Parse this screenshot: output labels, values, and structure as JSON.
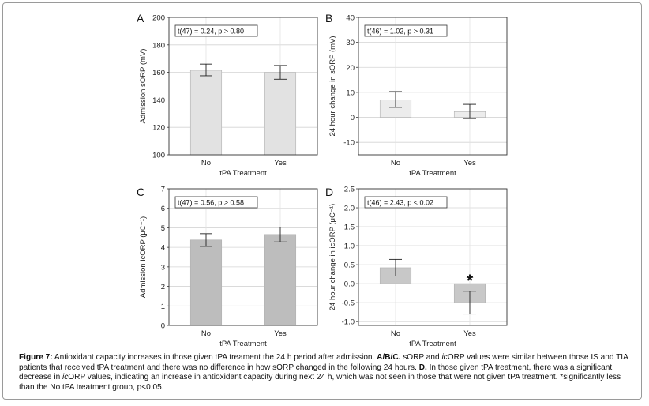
{
  "chart_data": [
    {
      "panel": "A",
      "type": "bar",
      "categories": [
        "No",
        "Yes"
      ],
      "values": [
        161.5,
        160
      ],
      "error_bars": [
        [
          157.5,
          166
        ],
        [
          155,
          165
        ]
      ],
      "xlabel": "tPA Treatment",
      "ylabel": "Admission sORP (mV)",
      "ylim": [
        100,
        200
      ],
      "yticks": [
        100,
        120,
        140,
        160,
        180,
        200
      ],
      "stat_label": "t(47) = 0.24, p > 0.80",
      "bar_color": "#e2e2e2",
      "grid": true
    },
    {
      "panel": "B",
      "type": "bar",
      "categories": [
        "No",
        "Yes"
      ],
      "values": [
        7,
        2.3
      ],
      "error_bars": [
        [
          4,
          10.3
        ],
        [
          -0.5,
          5.2
        ]
      ],
      "xlabel": "tPA Treatment",
      "ylabel": "24 hour change in sORP (mV)",
      "ylim": [
        -15,
        40
      ],
      "yticks": [
        -10,
        0,
        10,
        20,
        30,
        40
      ],
      "stat_label": "t(46) = 1.02, p > 0.31",
      "bar_color": "#ececec",
      "grid": true
    },
    {
      "panel": "C",
      "type": "bar",
      "categories": [
        "No",
        "Yes"
      ],
      "values": [
        4.38,
        4.66
      ],
      "error_bars": [
        [
          4.05,
          4.7
        ],
        [
          4.28,
          5.04
        ]
      ],
      "xlabel": "tPA Treatment",
      "ylabel": "Admission icORP (μC⁻¹)",
      "ylim": [
        0,
        7
      ],
      "yticks": [
        0,
        1,
        2,
        3,
        4,
        5,
        6,
        7
      ],
      "stat_label": "t(47) = 0.56, p > 0.58",
      "bar_color": "#bdbdbd",
      "grid": true
    },
    {
      "panel": "D",
      "type": "bar",
      "categories": [
        "No",
        "Yes"
      ],
      "values": [
        0.42,
        -0.5
      ],
      "error_bars": [
        [
          0.2,
          0.64
        ],
        [
          -0.8,
          -0.2
        ]
      ],
      "xlabel": "tPA Treatment",
      "ylabel": "24 hour change in icORP (μC⁻¹)",
      "ylim": [
        -1.1,
        2.5
      ],
      "yticks": [
        -1.0,
        -0.5,
        0.0,
        0.5,
        1.0,
        1.5,
        2.0,
        2.5
      ],
      "stat_label": "t(46) = 2.43, p < 0.02",
      "annotation": "*",
      "bar_color": "#c8c8c8",
      "grid": true
    }
  ],
  "caption": {
    "figure_label": "Figure 7:",
    "seg1": " Antioxidant capacity increases in those given tPA treament the 24 h period after admission. ",
    "seg2": "A/B/C.",
    "seg3": " sORP and ",
    "seg4": "ic",
    "seg5": "ORP values were similar between those IS and TIA patients that received tPA treatment and there was no difference in how sORP changed in the following 24 hours. ",
    "seg6": "D.",
    "seg7": " In those given tPA treatment, there was a significant decrease in ",
    "seg8": "ic",
    "seg9": "ORP values, indicating an increase in antioxidant capacity during next 24 h, which was not seen in those that were not given tPA treatment. *significantly less than the No tPA treatment group, p<0.05."
  }
}
